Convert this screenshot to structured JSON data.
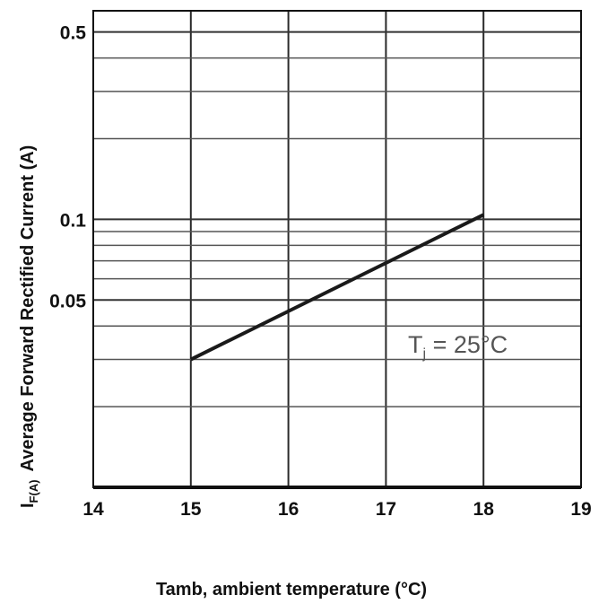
{
  "chart_data": {
    "type": "line",
    "xlabel": "Tamb, ambient temperature (°C)",
    "ylabel": {
      "symbol": "I",
      "symbol_subscript": "F(A)",
      "text": "Average Forward Rectified Current (A)"
    },
    "x_ticks": [
      "14",
      "15",
      "16",
      "17",
      "18",
      "19"
    ],
    "y_ticks": [
      {
        "value": 0.5,
        "label": "0.5"
      },
      {
        "value": 0.1,
        "label": "0.1"
      },
      {
        "value": 0.05,
        "label": "0.05"
      }
    ],
    "xlim": [
      14,
      19
    ],
    "ylim": [
      0.01,
      0.6
    ],
    "y_scale": "log",
    "grid": {
      "vertical": true,
      "horizontal": true
    },
    "series": [
      {
        "x": [
          15,
          18
        ],
        "y": [
          0.03,
          0.104
        ],
        "color": "#1a1a1a"
      }
    ],
    "annotation": {
      "prefix": "T",
      "subscript": "j",
      "suffix": " = 25°C"
    }
  }
}
